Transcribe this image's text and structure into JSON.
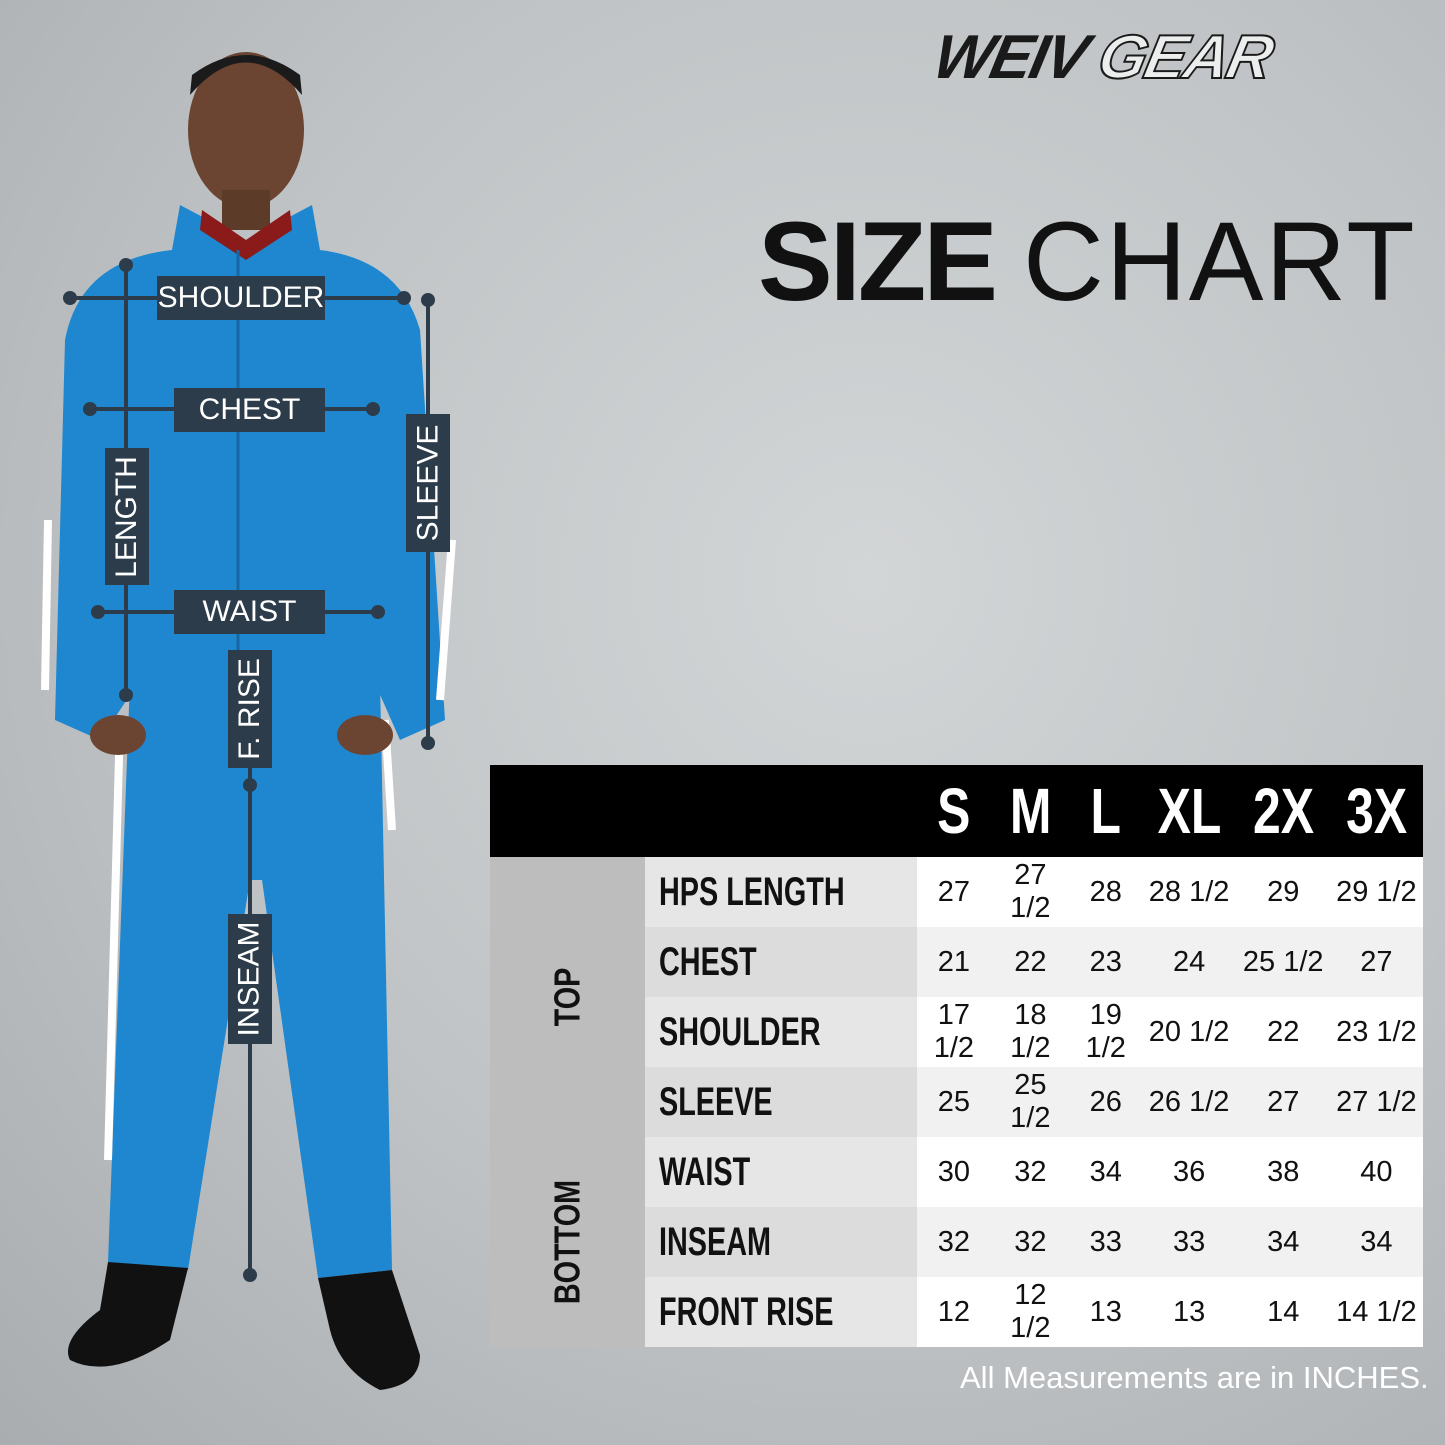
{
  "brand": {
    "logo_text_bold": "WEIV",
    "logo_text_outline": "GEAR"
  },
  "title": {
    "bold": "SIZE",
    "light": "CHART"
  },
  "figure_labels": {
    "shoulder": "SHOULDER",
    "chest": "CHEST",
    "waist": "WAIST",
    "length": "LENGTH",
    "sleeve": "SLEEVE",
    "front_rise": "F. RISE",
    "inseam": "INSEAM"
  },
  "colors": {
    "tracksuit": "#1f87cf",
    "label_bg": "#2c3c4a",
    "header_bg": "#000000"
  },
  "table": {
    "sizes": [
      "S",
      "M",
      "L",
      "XL",
      "2X",
      "3X"
    ],
    "groups": [
      {
        "name": "TOP",
        "rows": [
          {
            "label": "HPS LENGTH",
            "values": [
              "27",
              "27 1/2",
              "28",
              "28 1/2",
              "29",
              "29 1/2"
            ]
          },
          {
            "label": "CHEST",
            "values": [
              "21",
              "22",
              "23",
              "24",
              "25 1/2",
              "27"
            ]
          },
          {
            "label": "SHOULDER",
            "values": [
              "17 1/2",
              "18 1/2",
              "19 1/2",
              "20 1/2",
              "22",
              "23 1/2"
            ]
          },
          {
            "label": "SLEEVE",
            "values": [
              "25",
              "25 1/2",
              "26",
              "26 1/2",
              "27",
              "27 1/2"
            ]
          }
        ]
      },
      {
        "name": "BOTTOM",
        "rows": [
          {
            "label": "WAIST",
            "values": [
              "30",
              "32",
              "34",
              "36",
              "38",
              "40"
            ]
          },
          {
            "label": "INSEAM",
            "values": [
              "32",
              "32",
              "33",
              "33",
              "34",
              "34"
            ]
          },
          {
            "label": "FRONT RISE",
            "values": [
              "12",
              "12 1/2",
              "13",
              "13",
              "14",
              "14 1/2"
            ]
          }
        ]
      }
    ]
  },
  "footnote": "All Measurements are in INCHES."
}
